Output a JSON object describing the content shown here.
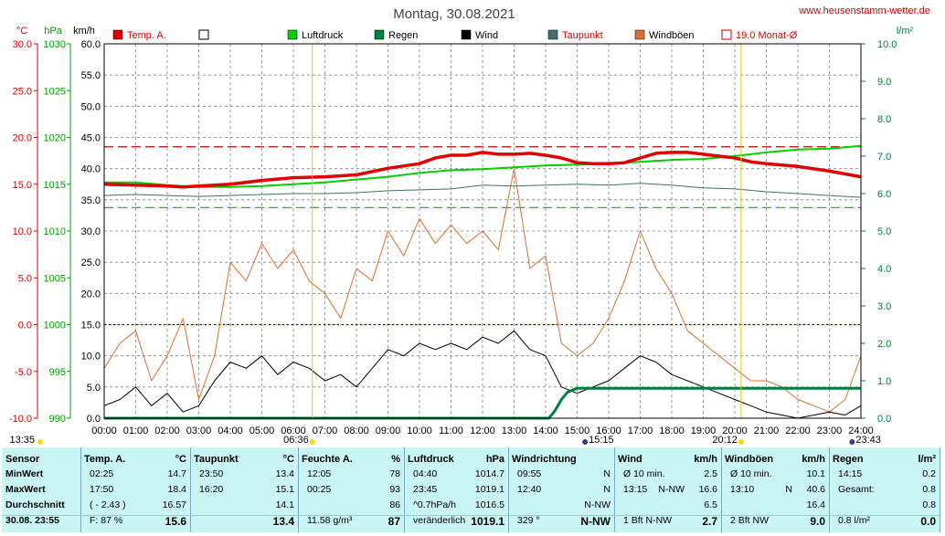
{
  "title": "Montag, 30.08.2021",
  "site": "www.heusenstamm-wetter.de",
  "colors": {
    "temp": "#e00000",
    "luftdruck": "#00d000",
    "regen": "#008040",
    "wind": "#000000",
    "taupunkt": "#407070",
    "windboeen": "#e07030",
    "monat": "#c00000",
    "grid": "#808080",
    "panel": "#c9f5f5"
  },
  "chart_data": {
    "type": "line",
    "axes": {
      "temp": {
        "label": "°C",
        "min": -10,
        "max": 30,
        "step": 5,
        "ticks": [
          "30.0",
          "25.0",
          "20.0",
          "15.0",
          "10.0",
          "5.0",
          "0.0",
          "-5.0",
          "-10.0"
        ]
      },
      "pressure": {
        "label": "hPa",
        "min": 990,
        "max": 1030,
        "step": 5,
        "ticks": [
          "1030",
          "1025",
          "1020",
          "1015",
          "1010",
          "1005",
          "1000",
          "995",
          "990"
        ]
      },
      "wind": {
        "label": "km/h",
        "min": 0,
        "max": 60,
        "step": 5,
        "ticks": [
          "60.0",
          "55.0",
          "50.0",
          "45.0",
          "40.0",
          "35.0",
          "30.0",
          "25.0",
          "20.0",
          "15.0",
          "10.0",
          "5.0",
          "0.0"
        ]
      },
      "rain": {
        "label": "l/m²",
        "min": 0,
        "max": 10,
        "step": 1,
        "ticks": [
          "10.0",
          "9.0",
          "8.0",
          "7.0",
          "6.0",
          "5.0",
          "4.0",
          "3.0",
          "2.0",
          "1.0",
          "0.0"
        ]
      }
    },
    "x_ticks": [
      "00:00",
      "01:00",
      "02:00",
      "03:00",
      "04:00",
      "05:00",
      "06:00",
      "07:00",
      "08:00",
      "09:00",
      "10:00",
      "11:00",
      "12:00",
      "13:00",
      "14:00",
      "15:00",
      "16:00",
      "17:00",
      "18:00",
      "19:00",
      "20:00",
      "21:00",
      "22:00",
      "23:00",
      "24:00"
    ],
    "x_range": [
      0,
      24
    ],
    "sun_markers": [
      {
        "label": "06:36",
        "t": 6.6
      },
      {
        "label": "20:12",
        "t": 20.2
      }
    ],
    "moon_markers": [
      {
        "label": "13:35",
        "t": 13.58
      },
      {
        "label": "15:15",
        "t": 15.25
      },
      {
        "label": "23:43",
        "t": 23.72
      }
    ],
    "reference_lines": [
      {
        "series": "monat",
        "axis": "temp",
        "value": 19.0
      },
      {
        "series": "luftdruck",
        "axis": "pressure",
        "value": 1012.5
      },
      {
        "series": "zero",
        "axis": "temp",
        "value": 0
      }
    ],
    "legend": [
      "Temp. A.",
      "",
      "Luftdruck",
      "Regen",
      "Wind",
      "Taupunkt",
      "Windböen",
      "19.0 Monat-Ø"
    ],
    "series": [
      {
        "name": "Temp. A.",
        "key": "temp",
        "axis": "temp",
        "t": [
          0,
          1,
          2,
          2.5,
          3,
          4,
          5,
          6,
          7,
          8,
          9,
          10,
          10.5,
          11,
          11.5,
          12,
          12.5,
          13,
          13.5,
          14,
          14.5,
          15,
          15.5,
          16,
          16.5,
          17,
          17.5,
          18,
          18.5,
          19,
          19.5,
          20,
          20.5,
          21,
          22,
          23,
          24
        ],
        "v": [
          15.0,
          14.9,
          14.8,
          14.7,
          14.8,
          15.0,
          15.4,
          15.7,
          15.8,
          16.0,
          16.7,
          17.2,
          17.8,
          18.1,
          18.1,
          18.4,
          18.2,
          18.2,
          18.3,
          18.1,
          17.8,
          17.3,
          17.2,
          17.2,
          17.3,
          17.8,
          18.3,
          18.4,
          18.4,
          18.2,
          18.0,
          17.8,
          17.4,
          17.2,
          16.9,
          16.4,
          15.8
        ]
      },
      {
        "name": "Luftdruck",
        "key": "luftdruck",
        "axis": "pressure",
        "t": [
          0,
          1,
          2,
          3,
          4,
          5,
          6,
          7,
          8,
          9,
          10,
          11,
          12,
          13,
          14,
          15,
          16,
          17,
          18,
          19,
          20,
          21,
          22,
          23,
          24
        ],
        "v": [
          1015.2,
          1015.2,
          1014.9,
          1014.7,
          1014.7,
          1014.8,
          1015.0,
          1015.2,
          1015.5,
          1015.8,
          1016.2,
          1016.5,
          1016.6,
          1016.8,
          1017.0,
          1017.1,
          1017.2,
          1017.4,
          1017.6,
          1017.7,
          1018.0,
          1018.4,
          1018.7,
          1018.8,
          1019.1
        ]
      },
      {
        "name": "Taupunkt",
        "key": "taupunkt",
        "axis": "temp",
        "t": [
          0,
          1,
          2,
          3,
          4,
          5,
          6,
          7,
          8,
          9,
          10,
          11,
          12,
          13,
          14,
          15,
          16,
          17,
          18,
          19,
          20,
          21,
          22,
          23,
          24
        ],
        "v": [
          13.8,
          13.9,
          13.8,
          13.7,
          13.8,
          13.9,
          14.0,
          14.0,
          14.1,
          14.3,
          14.4,
          14.5,
          14.9,
          14.8,
          14.9,
          15.0,
          14.9,
          15.1,
          14.9,
          14.6,
          14.5,
          14.2,
          14.0,
          13.8,
          13.6
        ]
      },
      {
        "name": "Wind",
        "key": "wind",
        "axis": "wind",
        "t": [
          0,
          0.5,
          1,
          1.5,
          2,
          2.5,
          3,
          3.5,
          4,
          4.5,
          5,
          5.5,
          6,
          6.5,
          7,
          7.5,
          8,
          8.5,
          9,
          9.5,
          10,
          10.5,
          11,
          11.5,
          12,
          12.5,
          13,
          13.5,
          14,
          14.5,
          15,
          15.5,
          16,
          16.5,
          17,
          17.5,
          18,
          18.5,
          19,
          19.5,
          20,
          20.5,
          21,
          21.5,
          22,
          22.5,
          23,
          23.5,
          24
        ],
        "v": [
          2,
          3,
          5,
          2,
          4,
          1,
          2,
          6,
          9,
          8,
          10,
          7,
          9,
          8,
          6,
          7,
          5,
          8,
          11,
          10,
          12,
          11,
          12,
          11,
          13,
          12,
          14,
          11,
          10,
          5,
          4,
          5,
          6,
          8,
          10,
          9,
          7,
          6,
          5,
          4,
          3,
          2,
          1,
          0.5,
          0,
          0.5,
          1,
          0.5,
          2
        ]
      },
      {
        "name": "Windböen",
        "key": "windboeen",
        "axis": "wind",
        "t": [
          0,
          0.5,
          1,
          1.5,
          2,
          2.5,
          3,
          3.5,
          4,
          4.5,
          5,
          5.5,
          6,
          6.5,
          7,
          7.5,
          8,
          8.5,
          9,
          9.5,
          10,
          10.5,
          11,
          11.5,
          12,
          12.5,
          13,
          13.5,
          14,
          14.5,
          15,
          15.5,
          16,
          16.5,
          17,
          17.5,
          18,
          18.5,
          19,
          19.5,
          20,
          20.5,
          21,
          21.5,
          22,
          22.5,
          23,
          23.5,
          24
        ],
        "v": [
          8,
          12,
          14,
          6,
          10,
          16,
          3,
          10,
          25,
          22,
          28,
          24,
          27,
          22,
          20,
          16,
          24,
          22,
          30,
          26,
          32,
          28,
          31,
          28,
          30,
          27,
          40,
          24,
          26,
          12,
          10,
          12,
          16,
          22,
          30,
          24,
          20,
          14,
          12,
          10,
          8,
          6,
          6,
          5,
          3,
          2,
          1,
          3,
          10
        ]
      },
      {
        "name": "Regen",
        "key": "regen",
        "axis": "rain",
        "t": [
          0,
          14.1,
          14.3,
          14.5,
          14.7,
          15.0,
          24
        ],
        "v": [
          0,
          0,
          0.2,
          0.5,
          0.7,
          0.8,
          0.8
        ]
      }
    ]
  },
  "panel": {
    "columns": [
      {
        "title": "Sensor",
        "unit": "",
        "rows": [
          [
            "MinWert",
            "",
            ""
          ],
          [
            "MaxWert",
            "",
            ""
          ],
          [
            "Durchschnitt",
            "",
            ""
          ],
          [
            "30.08. 23:55",
            "",
            ""
          ]
        ]
      },
      {
        "title": "Temp. A.",
        "unit": "°C",
        "rows": [
          [
            "02:25",
            "",
            "14.7"
          ],
          [
            "17:50",
            "",
            "18.4"
          ],
          [
            "( - 2.43 )",
            "",
            "16.57"
          ],
          [
            "F: 87 %",
            "",
            "15.6"
          ]
        ]
      },
      {
        "title": "Taupunkt",
        "unit": "°C",
        "rows": [
          [
            "23:50",
            "",
            "13.4"
          ],
          [
            "16:20",
            "",
            "15.1"
          ],
          [
            "",
            "",
            "14.1"
          ],
          [
            "",
            "",
            "13.4"
          ]
        ]
      },
      {
        "title": "Feuchte A.",
        "unit": "%",
        "rows": [
          [
            "12:05",
            "",
            "78"
          ],
          [
            "00:25",
            "",
            "93"
          ],
          [
            "",
            "",
            "86"
          ],
          [
            "11.58 g/m³",
            "",
            "87"
          ]
        ]
      },
      {
        "title": "Luftdruck",
        "unit": "hPa",
        "rows": [
          [
            "04:40",
            "",
            "1014.7"
          ],
          [
            "23:45",
            "",
            "1019.1"
          ],
          [
            "^0.7hPa/h",
            "",
            "1016.5"
          ],
          [
            "veränderlich",
            "",
            "1019.1"
          ]
        ]
      },
      {
        "title": "Windrichtung",
        "unit": "",
        "rows": [
          [
            "09:55",
            "",
            "N"
          ],
          [
            "12:40",
            "",
            "N"
          ],
          [
            "",
            "",
            "N-NW"
          ],
          [
            "329 °",
            "",
            "N-NW"
          ]
        ]
      },
      {
        "title": "Wind",
        "unit": "km/h",
        "rows": [
          [
            "Ø 10 min.",
            "",
            "2.5"
          ],
          [
            "13:15",
            "N-NW",
            "16.6"
          ],
          [
            "",
            "",
            "6.5"
          ],
          [
            "1 Bft N-NW",
            "",
            "2.7"
          ]
        ]
      },
      {
        "title": "Windböen",
        "unit": "km/h",
        "rows": [
          [
            "Ø 10 min.",
            "",
            "10.1"
          ],
          [
            "13:10",
            "N",
            "40.6"
          ],
          [
            "",
            "",
            "16.4"
          ],
          [
            "2 Bft NW",
            "",
            "9.0"
          ]
        ]
      },
      {
        "title": "Regen",
        "unit": "l/m²",
        "rows": [
          [
            "14:15",
            "",
            "0.2"
          ],
          [
            "Gesamt:",
            "",
            "0.8"
          ],
          [
            "",
            "",
            "0.8"
          ],
          [
            "0.8 l/m²",
            "",
            "0.0"
          ]
        ]
      }
    ]
  }
}
